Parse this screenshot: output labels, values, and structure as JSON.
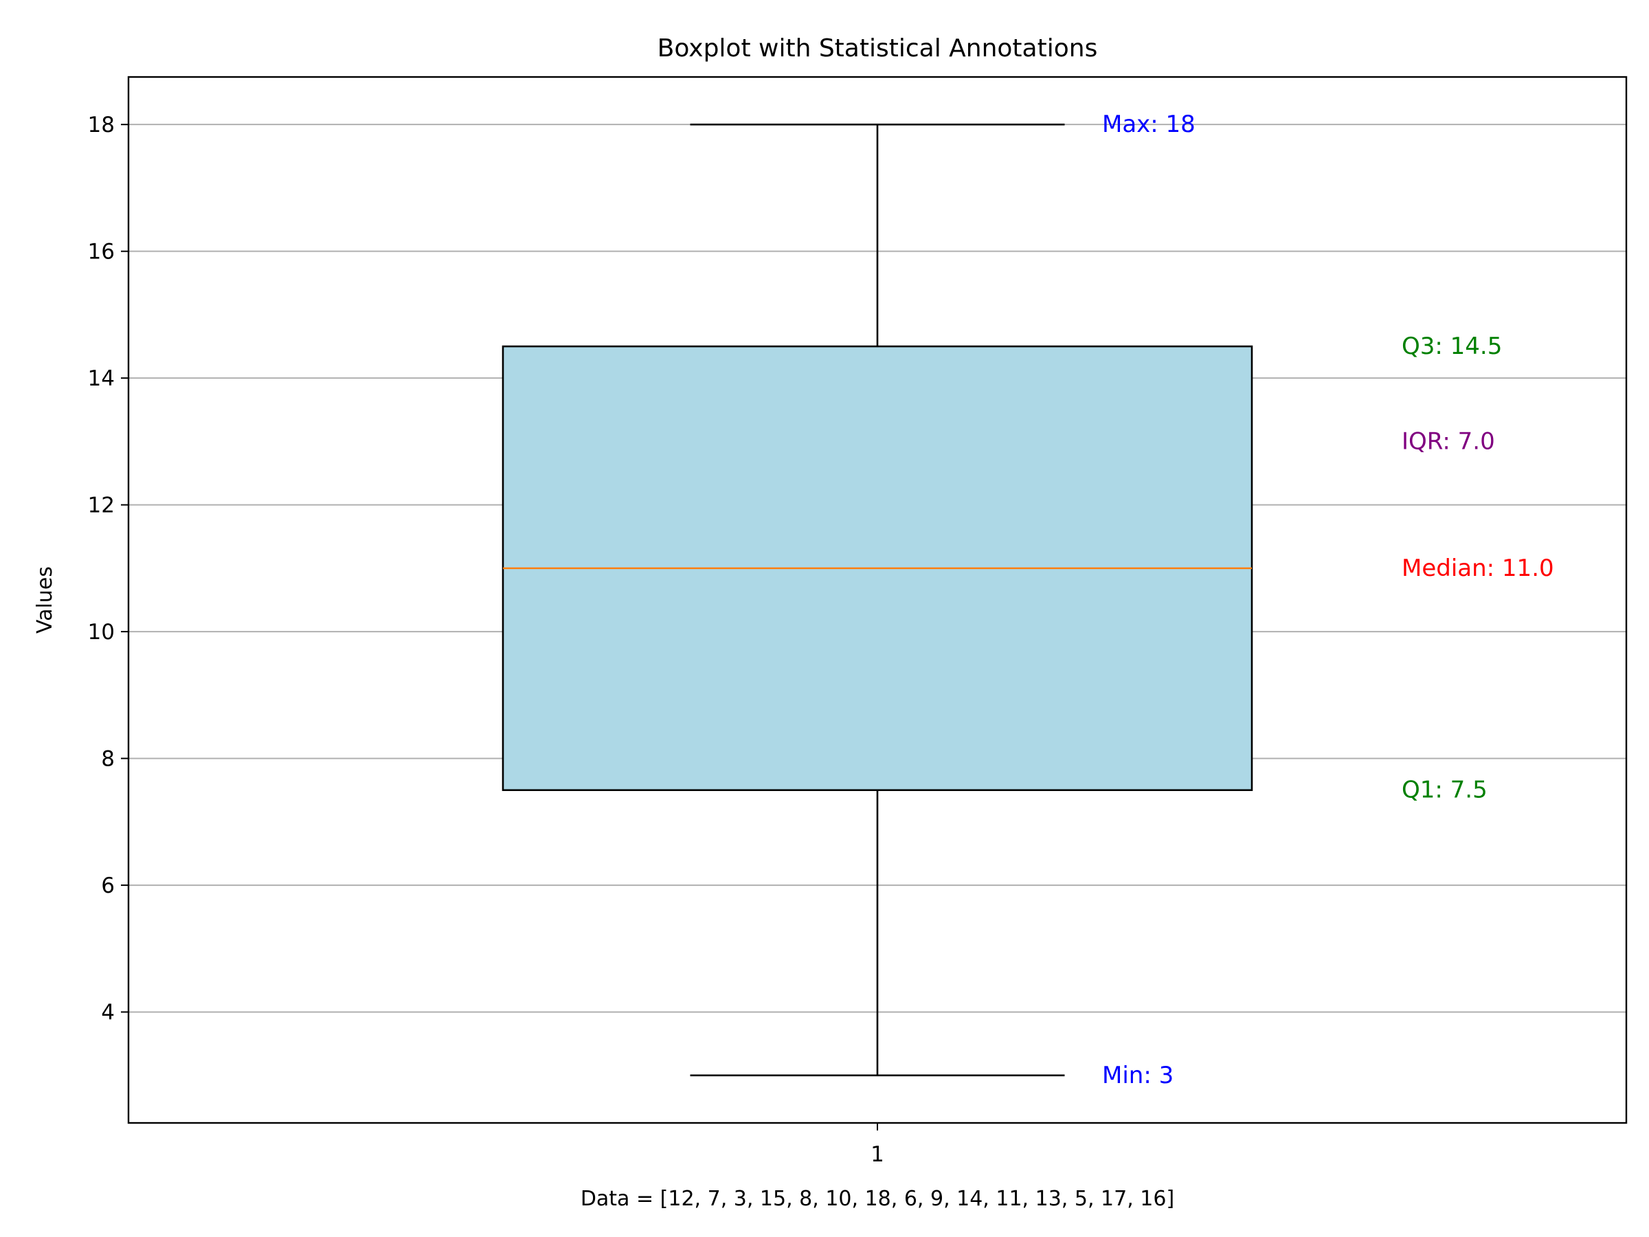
{
  "chart_data": {
    "type": "boxplot",
    "title": "Boxplot with Statistical Annotations",
    "xlabel": "Data = [12, 7, 3, 15, 8, 10, 18, 6, 9, 14, 11, 13, 5, 17, 16]",
    "ylabel": "Values",
    "data": [
      12,
      7,
      3,
      15,
      8,
      10,
      18,
      6,
      9,
      14,
      11,
      13,
      5,
      17,
      16
    ],
    "categories": [
      "1"
    ],
    "ylim": [
      2.25,
      18.75
    ],
    "xlim": [
      0.5,
      1.5
    ],
    "yticks": [
      4,
      6,
      8,
      10,
      12,
      14,
      16,
      18
    ],
    "grid": "y",
    "stats": {
      "min": 3,
      "q1": 7.5,
      "median": 11.0,
      "q3": 14.5,
      "max": 18,
      "iqr": 7.0
    },
    "annotations": [
      {
        "text": "Max: 18",
        "y": 18,
        "color": "#0000ff"
      },
      {
        "text": "Min: 3",
        "y": 3,
        "color": "#0000ff"
      },
      {
        "text": "Q3: 14.5",
        "y": 14.5,
        "color": "#008000"
      },
      {
        "text": "IQR: 7.0",
        "y": 13.0,
        "color": "#800080"
      },
      {
        "text": "Median: 11.0",
        "y": 11.0,
        "color": "#ff0000"
      },
      {
        "text": "Q1: 7.5",
        "y": 7.5,
        "color": "#008000"
      }
    ],
    "colors": {
      "box_fill": "#add8e6",
      "median": "#ff7f0e",
      "grid": "#b0b0b0"
    }
  }
}
